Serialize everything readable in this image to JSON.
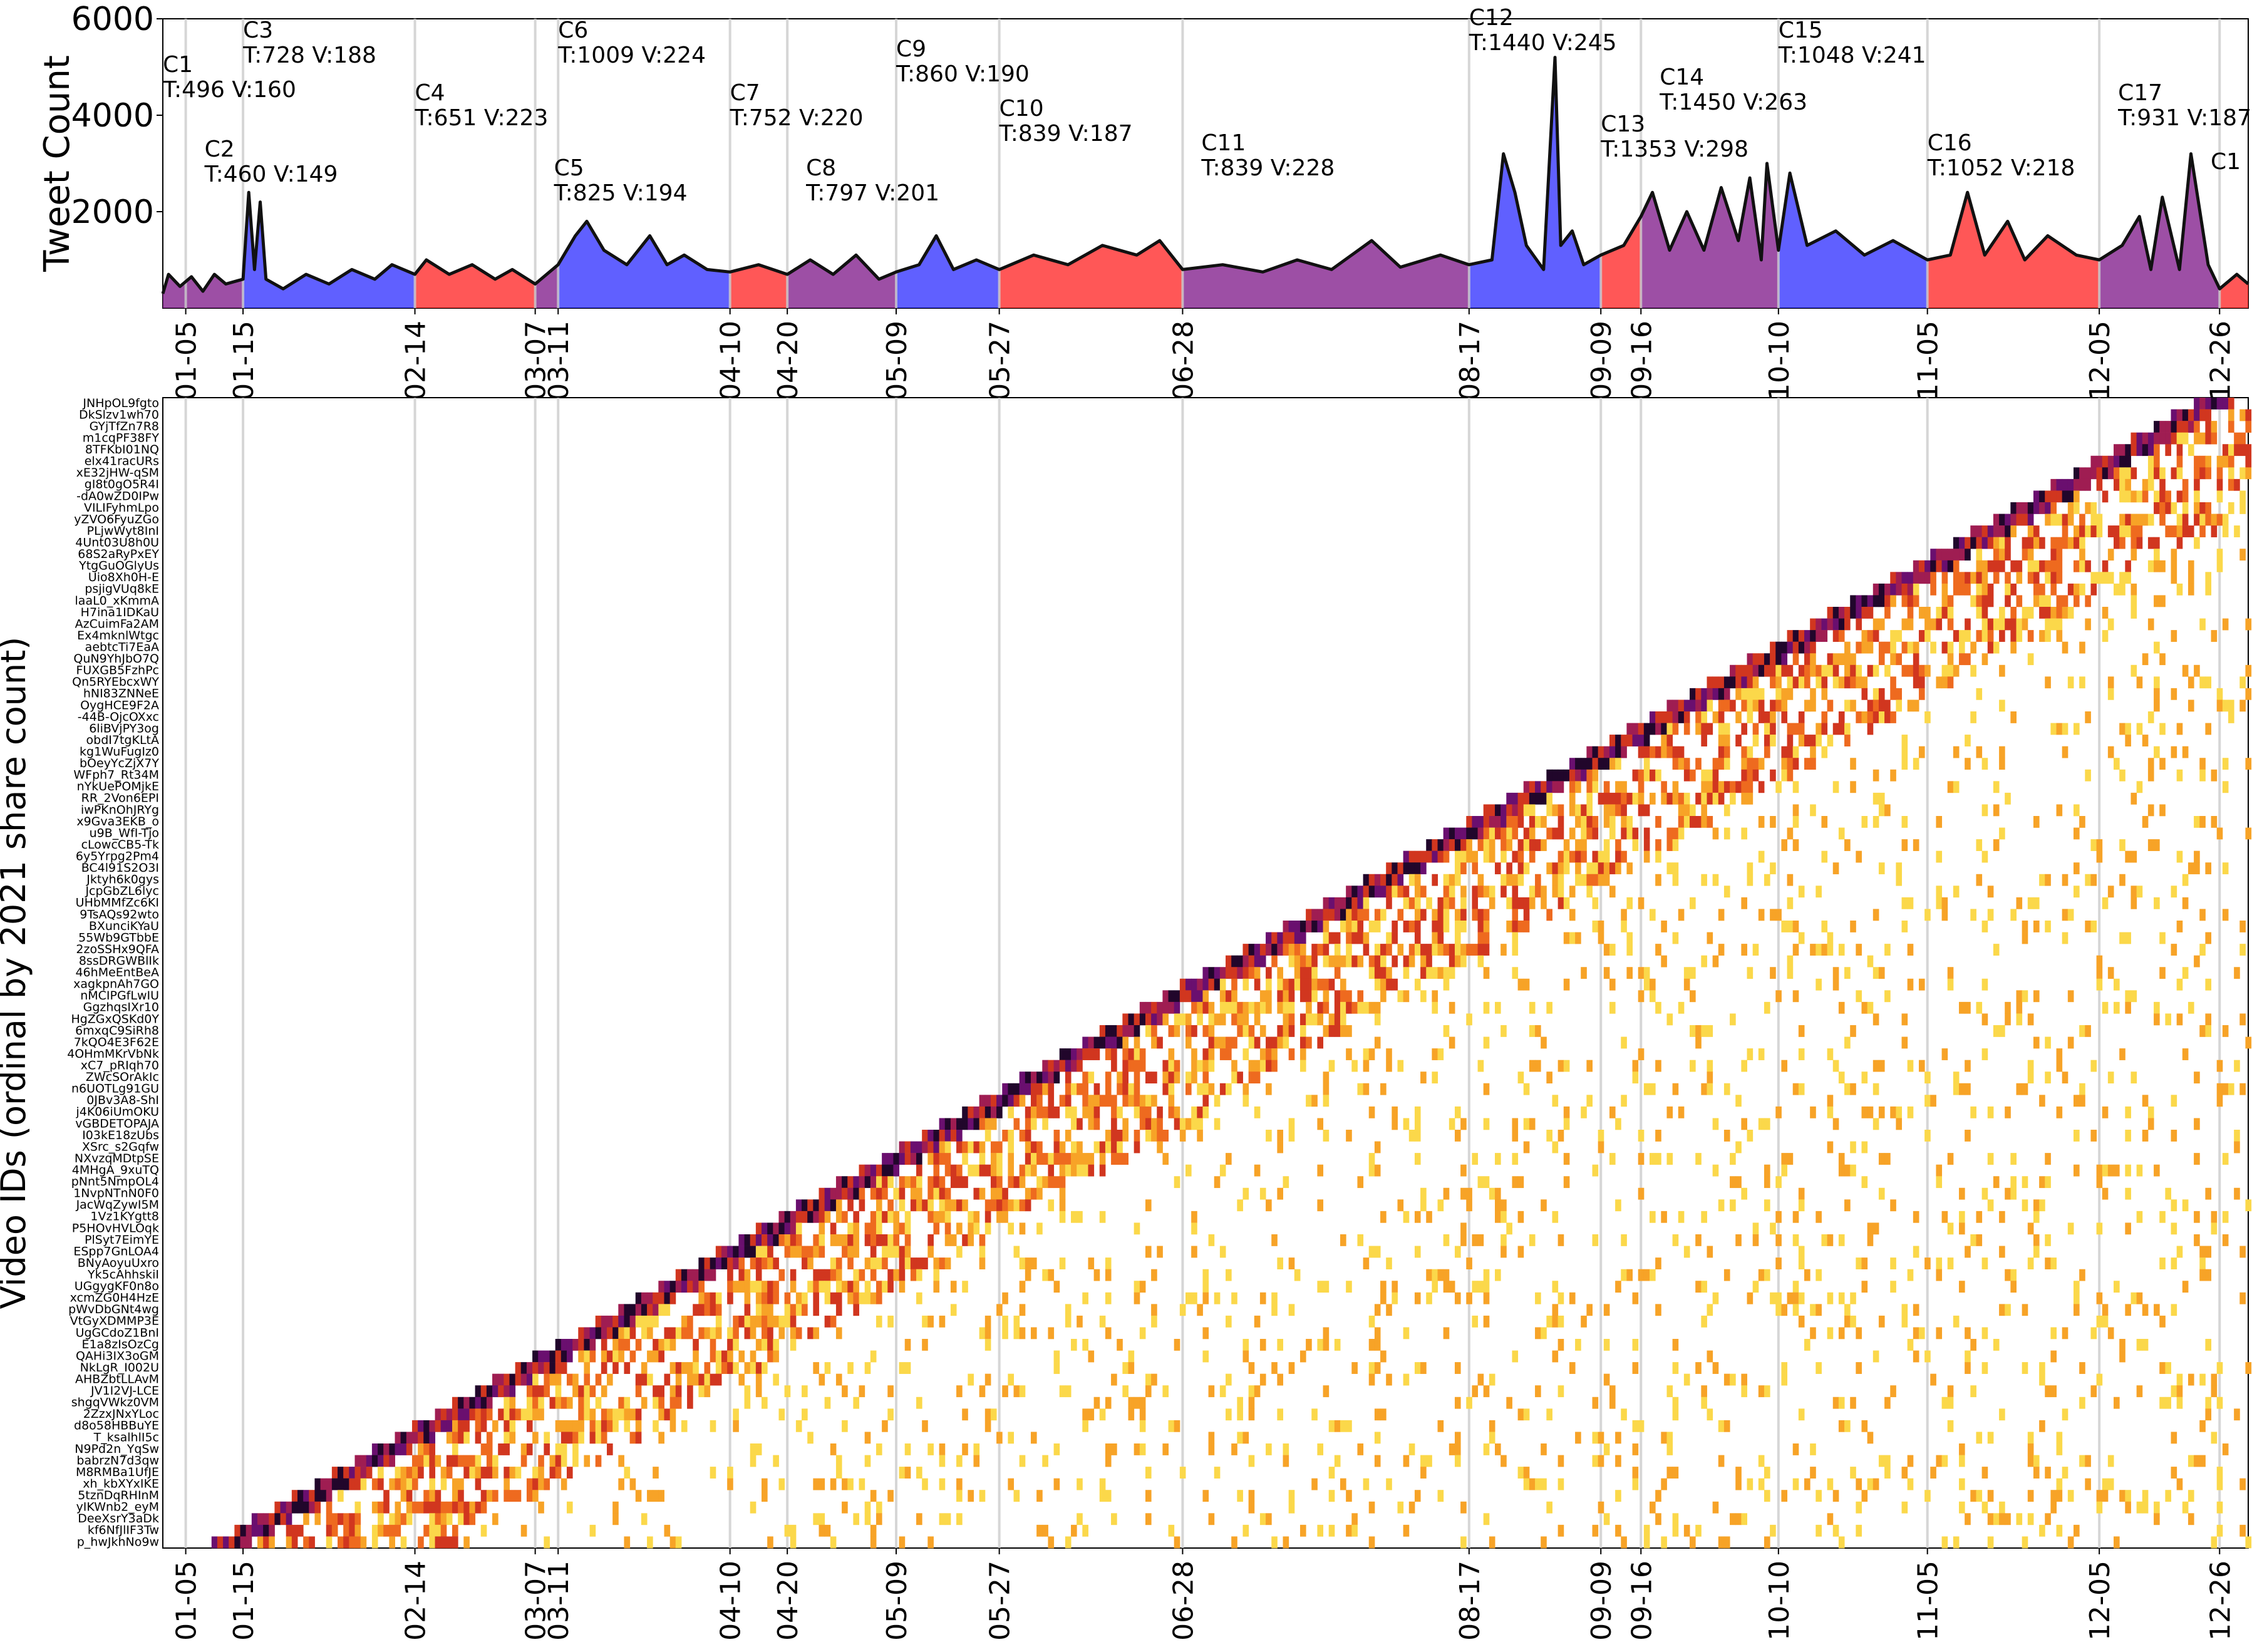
{
  "chart_data": [
    {
      "type": "area",
      "ylabel": "Tweet Count",
      "ylim": [
        0,
        6000
      ],
      "y_ticks": [
        "2000",
        "4000",
        "6000"
      ],
      "x_range": [
        "01-01",
        "12-31"
      ],
      "x_tick_labels": [
        "01-05",
        "01-15",
        "02-14",
        "03-07",
        "03-11",
        "04-10",
        "04-20",
        "05-09",
        "05-27",
        "06-28",
        "08-17",
        "09-09",
        "09-16",
        "10-10",
        "11-05",
        "12-05",
        "12-26"
      ],
      "colors": {
        "red": "#ff2020",
        "blue": "#2020ff",
        "purple": "#8b1a8b",
        "line": "#111111",
        "grid": "#cccccc"
      },
      "clusters": [
        {
          "id": "C1",
          "info": "T:496 V:160",
          "start": "01-01",
          "end": "01-05",
          "color": "purple",
          "label_color": "red"
        },
        {
          "id": "C2",
          "info": "T:460 V:149",
          "start": "01-05",
          "end": "01-15",
          "color": "purple",
          "label_color": "purple"
        },
        {
          "id": "C3",
          "info": "T:728 V:188",
          "start": "01-15",
          "end": "02-14",
          "color": "blue",
          "label_color": "blue"
        },
        {
          "id": "C4",
          "info": "T:651 V:223",
          "start": "02-14",
          "end": "03-07",
          "color": "red",
          "label_color": "red"
        },
        {
          "id": "C5",
          "info": "T:825 V:194",
          "start": "03-07",
          "end": "03-11",
          "color": "purple",
          "label_color": "purple"
        },
        {
          "id": "C6",
          "info": "T:1009 V:224",
          "start": "03-11",
          "end": "04-10",
          "color": "blue",
          "label_color": "blue"
        },
        {
          "id": "C7",
          "info": "T:752 V:220",
          "start": "04-10",
          "end": "04-20",
          "color": "red",
          "label_color": "red"
        },
        {
          "id": "C8",
          "info": "T:797 V:201",
          "start": "04-20",
          "end": "05-09",
          "color": "purple",
          "label_color": "purple"
        },
        {
          "id": "C9",
          "info": "T:860 V:190",
          "start": "05-09",
          "end": "05-27",
          "color": "blue",
          "label_color": "blue"
        },
        {
          "id": "C10",
          "info": "T:839 V:187",
          "start": "05-27",
          "end": "06-28",
          "color": "red",
          "label_color": "red"
        },
        {
          "id": "C11",
          "info": "T:839 V:228",
          "start": "06-28",
          "end": "08-17",
          "color": "purple",
          "label_color": "purple"
        },
        {
          "id": "C12",
          "info": "T:1440 V:245",
          "start": "08-17",
          "end": "09-09",
          "color": "blue",
          "label_color": "blue"
        },
        {
          "id": "C13",
          "info": "T:1353 V:298",
          "start": "09-09",
          "end": "09-16",
          "color": "red",
          "label_color": "red"
        },
        {
          "id": "C14",
          "info": "T:1450 V:263",
          "start": "09-16",
          "end": "10-10",
          "color": "purple",
          "label_color": "purple"
        },
        {
          "id": "C15",
          "info": "T:1048 V:241",
          "start": "10-10",
          "end": "11-05",
          "color": "blue",
          "label_color": "blue"
        },
        {
          "id": "C16",
          "info": "T:1052 V:218",
          "start": "11-05",
          "end": "12-05",
          "color": "red",
          "label_color": "red"
        },
        {
          "id": "C17",
          "info": "T:931 V:187",
          "start": "12-05",
          "end": "12-26",
          "color": "purple",
          "label_color": "purple"
        },
        {
          "id": "C1",
          "info": "",
          "start": "12-26",
          "end": "12-31",
          "color": "red",
          "label_color": "red"
        }
      ],
      "series": [
        {
          "values": [
            {
              "x": "01-01",
              "y": 300
            },
            {
              "x": "01-02",
              "y": 700
            },
            {
              "x": "01-04",
              "y": 450
            },
            {
              "x": "01-06",
              "y": 650
            },
            {
              "x": "01-08",
              "y": 350
            },
            {
              "x": "01-10",
              "y": 700
            },
            {
              "x": "01-12",
              "y": 500
            },
            {
              "x": "01-15",
              "y": 600
            },
            {
              "x": "01-16",
              "y": 2400
            },
            {
              "x": "01-17",
              "y": 800
            },
            {
              "x": "01-18",
              "y": 2200
            },
            {
              "x": "01-19",
              "y": 600
            },
            {
              "x": "01-22",
              "y": 400
            },
            {
              "x": "01-26",
              "y": 700
            },
            {
              "x": "01-30",
              "y": 500
            },
            {
              "x": "02-03",
              "y": 800
            },
            {
              "x": "02-07",
              "y": 600
            },
            {
              "x": "02-10",
              "y": 900
            },
            {
              "x": "02-14",
              "y": 700
            },
            {
              "x": "02-16",
              "y": 1000
            },
            {
              "x": "02-20",
              "y": 700
            },
            {
              "x": "02-24",
              "y": 900
            },
            {
              "x": "02-28",
              "y": 600
            },
            {
              "x": "03-03",
              "y": 800
            },
            {
              "x": "03-07",
              "y": 500
            },
            {
              "x": "03-11",
              "y": 900
            },
            {
              "x": "03-14",
              "y": 1500
            },
            {
              "x": "03-16",
              "y": 1800
            },
            {
              "x": "03-19",
              "y": 1200
            },
            {
              "x": "03-23",
              "y": 900
            },
            {
              "x": "03-27",
              "y": 1500
            },
            {
              "x": "03-30",
              "y": 900
            },
            {
              "x": "04-02",
              "y": 1100
            },
            {
              "x": "04-06",
              "y": 800
            },
            {
              "x": "04-10",
              "y": 750
            },
            {
              "x": "04-15",
              "y": 900
            },
            {
              "x": "04-20",
              "y": 700
            },
            {
              "x": "04-24",
              "y": 1000
            },
            {
              "x": "04-28",
              "y": 700
            },
            {
              "x": "05-02",
              "y": 1100
            },
            {
              "x": "05-06",
              "y": 600
            },
            {
              "x": "05-09",
              "y": 750
            },
            {
              "x": "05-13",
              "y": 900
            },
            {
              "x": "05-16",
              "y": 1500
            },
            {
              "x": "05-19",
              "y": 800
            },
            {
              "x": "05-23",
              "y": 1000
            },
            {
              "x": "05-27",
              "y": 800
            },
            {
              "x": "06-02",
              "y": 1100
            },
            {
              "x": "06-08",
              "y": 900
            },
            {
              "x": "06-14",
              "y": 1300
            },
            {
              "x": "06-20",
              "y": 1100
            },
            {
              "x": "06-24",
              "y": 1400
            },
            {
              "x": "06-28",
              "y": 800
            },
            {
              "x": "07-05",
              "y": 900
            },
            {
              "x": "07-12",
              "y": 750
            },
            {
              "x": "07-18",
              "y": 1000
            },
            {
              "x": "07-24",
              "y": 800
            },
            {
              "x": "07-31",
              "y": 1400
            },
            {
              "x": "08-05",
              "y": 850
            },
            {
              "x": "08-12",
              "y": 1100
            },
            {
              "x": "08-17",
              "y": 900
            },
            {
              "x": "08-21",
              "y": 1000
            },
            {
              "x": "08-23",
              "y": 3200
            },
            {
              "x": "08-25",
              "y": 2400
            },
            {
              "x": "08-27",
              "y": 1300
            },
            {
              "x": "08-30",
              "y": 800
            },
            {
              "x": "09-01",
              "y": 5200
            },
            {
              "x": "09-02",
              "y": 1300
            },
            {
              "x": "09-04",
              "y": 1600
            },
            {
              "x": "09-06",
              "y": 900
            },
            {
              "x": "09-09",
              "y": 1100
            },
            {
              "x": "09-13",
              "y": 1300
            },
            {
              "x": "09-16",
              "y": 1900
            },
            {
              "x": "09-18",
              "y": 2400
            },
            {
              "x": "09-21",
              "y": 1200
            },
            {
              "x": "09-24",
              "y": 2000
            },
            {
              "x": "09-27",
              "y": 1200
            },
            {
              "x": "09-30",
              "y": 2500
            },
            {
              "x": "10-03",
              "y": 1400
            },
            {
              "x": "10-05",
              "y": 2700
            },
            {
              "x": "10-07",
              "y": 1000
            },
            {
              "x": "10-08",
              "y": 3000
            },
            {
              "x": "10-10",
              "y": 1200
            },
            {
              "x": "10-12",
              "y": 2800
            },
            {
              "x": "10-15",
              "y": 1300
            },
            {
              "x": "10-20",
              "y": 1600
            },
            {
              "x": "10-25",
              "y": 1100
            },
            {
              "x": "10-30",
              "y": 1400
            },
            {
              "x": "11-05",
              "y": 1000
            },
            {
              "x": "11-09",
              "y": 1100
            },
            {
              "x": "11-12",
              "y": 2400
            },
            {
              "x": "11-15",
              "y": 1100
            },
            {
              "x": "11-19",
              "y": 1800
            },
            {
              "x": "11-22",
              "y": 1000
            },
            {
              "x": "11-26",
              "y": 1500
            },
            {
              "x": "12-01",
              "y": 1100
            },
            {
              "x": "12-05",
              "y": 1000
            },
            {
              "x": "12-09",
              "y": 1300
            },
            {
              "x": "12-12",
              "y": 1900
            },
            {
              "x": "12-14",
              "y": 800
            },
            {
              "x": "12-16",
              "y": 2300
            },
            {
              "x": "12-19",
              "y": 800
            },
            {
              "x": "12-21",
              "y": 3200
            },
            {
              "x": "12-24",
              "y": 900
            },
            {
              "x": "12-26",
              "y": 400
            },
            {
              "x": "12-29",
              "y": 700
            },
            {
              "x": "12-31",
              "y": 500
            }
          ]
        }
      ]
    },
    {
      "type": "heatmap",
      "ylabel": "Video IDs (ordinal by 2021 share count)",
      "x_tick_labels": [
        "01-05",
        "01-15",
        "02-14",
        "03-07",
        "03-11",
        "04-10",
        "04-20",
        "05-09",
        "05-27",
        "06-28",
        "08-17",
        "09-09",
        "09-16",
        "10-10",
        "11-05",
        "12-05",
        "12-26"
      ],
      "colormap": [
        "#fffcad",
        "#fbd84a",
        "#f7a327",
        "#ee6a1f",
        "#d1361f",
        "#9f1d52",
        "#6a0f6f",
        "#21062b"
      ],
      "video_ids": [
        "JNHpOL9fgto",
        "DkSlzv1wh70",
        "GYjTfZn7R8",
        "m1cqPF38FY",
        "8TFKbI01NQ",
        "elx41racURs",
        "xE32jHW-qSM",
        "gI8t0gO5R4I",
        "-dA0wZD0IPw",
        "VILIFyhmLpo",
        "yZVO6FyuZGo",
        "PLjwWyt8InI",
        "4Unt03U8h0U",
        "68S2aRyPxEY",
        "YtgGuOGlyUs",
        "Uio8Xh0H-E",
        "psjigVUq8kE",
        "laaL0_xKmmA",
        "H7ina1IDKaU",
        "AzCuimFa2AM",
        "Ex4mknlWtgc",
        "aebtcTi7EaA",
        "QuN9YhJbO7Q",
        "FUXGB5FzhPc",
        "Qn5RYEbcxWY",
        "hNI83ZNNeE",
        "OygHCE9F2A",
        "-44B-OjcOXxc",
        "6liBVjPY3og",
        "obdI7tgKLtA",
        "kg1WuFugIz0",
        "bOeyYcZjX7Y",
        "WFph7_Rt34M",
        "nYkUePOMjkE",
        "RR_2Von6EPI",
        "iwPKnOhJRYg",
        "x9Gva3EKB_o",
        "u9B_WfI-Tjo",
        "cLowcCB5-Tk",
        "6y5Yrpg2Pm4",
        "BC4l91S2O3I",
        "Jktyh6k0gys",
        "JcpGbZL6lyc",
        "UHbMMfZc6KI",
        "9TsAQs92wto",
        "BXunciKYaU",
        "55Wb9GTbbE",
        "2zoSSHx9QFA",
        "8ssDRGWBlIk",
        "46hMeEntBeA",
        "xagkpnAh7GO",
        "nMCIPGfLwIU",
        "GgzhqsIXr10",
        "HgZGxQSKd0Y",
        "6mxqC9SiRh8",
        "7kQO4E3F62E",
        "4OHmMKrVbNk",
        "xC7_pRIqh70",
        "ZWcSOrAkIc",
        "n6UOTLg91GU",
        "0JBv3A8-ShI",
        "j4K06iUmOKU",
        "vGBDETOPAJA",
        "I03kE18zUbs",
        "XSrc_s2Gqfw",
        "NXvzqMDtpSE",
        "4MHgA_9xuTQ",
        "pNnt5NmpOL4",
        "1NvpNTnN0F0",
        "JacWqZywI5M",
        "1Vz1KYgtt8",
        "P5HOvHVLOqk",
        "PlSyt7EimYE",
        "ESpp7GnLOA4",
        "BNyAoyuUxro",
        "Yk5cAhhskiI",
        "UGgygKF0n8o",
        "xcmZG0H4HzE",
        "pWvDbGNt4wg",
        "VtGyXDMMP3E",
        "UgGCdoZ1BnI",
        "E1a8zIsOzCg",
        "QAHi3IX3oGM",
        "NkLgR_I002U",
        "AHBZbtLLAvM",
        "JV1I2VJ-LCE",
        "shgqVWkz0VM",
        "2ZzxJNxYLoc",
        "d8o58HBBuYE",
        "T_ksalhlI5c",
        "N9Pd2n_YqSw",
        "babrzN7d3qw",
        "M8RMBa1UfJE",
        "xh_kbXYxIKE",
        "5tznDqRHInM",
        "yIKWnb2_eyM",
        "DeeXsrY3aDk",
        "kf6NfJlIF3Tw",
        "p_hwJkhNo9w"
      ],
      "note_order": "top row = highest ordinal"
    }
  ]
}
